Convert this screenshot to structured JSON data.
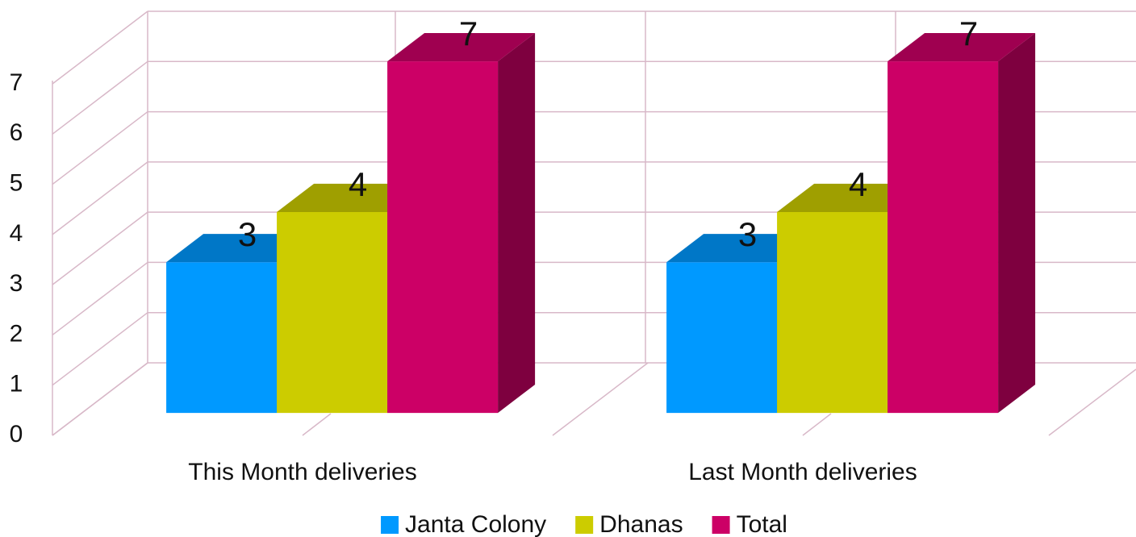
{
  "chart_data": {
    "type": "bar3d",
    "categories": [
      "This Month deliveries",
      "Last Month deliveries"
    ],
    "series": [
      {
        "name": "Janta Colony",
        "color": "#0099ff",
        "values": [
          3,
          3
        ]
      },
      {
        "name": "Dhanas",
        "color": "#cccc00",
        "values": [
          4,
          4
        ]
      },
      {
        "name": "Total",
        "color": "#cc0066",
        "values": [
          7,
          7
        ]
      }
    ],
    "ylim": [
      0,
      7
    ],
    "yticks": [
      0,
      1,
      2,
      3,
      4,
      5,
      6,
      7
    ],
    "grid": true,
    "legend": "bottom"
  }
}
